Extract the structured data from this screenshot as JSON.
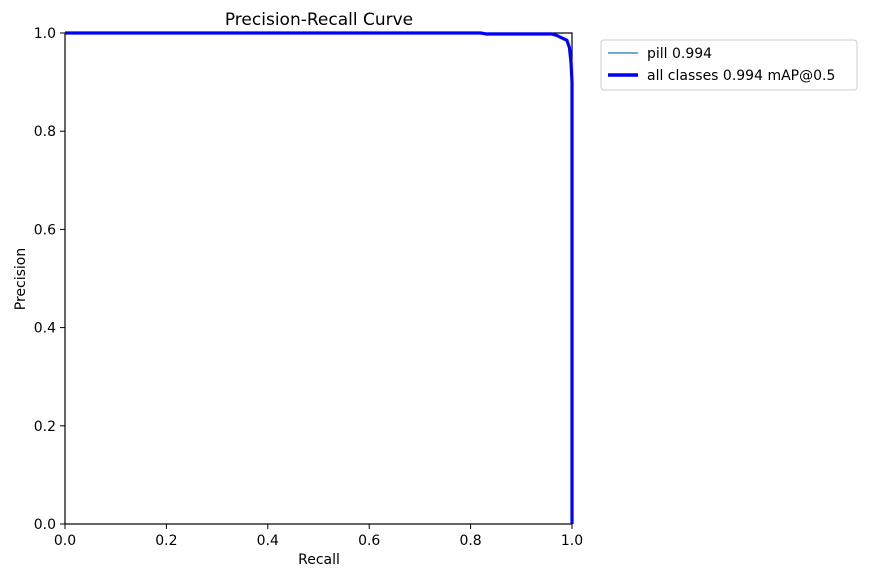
{
  "chart_data": {
    "type": "line",
    "title": "Precision-Recall Curve",
    "xlabel": "Recall",
    "ylabel": "Precision",
    "xlim": [
      0.0,
      1.0
    ],
    "ylim": [
      0.0,
      1.0
    ],
    "xticks": [
      "0.0",
      "0.2",
      "0.4",
      "0.6",
      "0.8",
      "1.0"
    ],
    "yticks": [
      "0.0",
      "0.2",
      "0.4",
      "0.6",
      "0.8",
      "1.0"
    ],
    "grid": false,
    "legend_position": "outside-top-right",
    "series": [
      {
        "name": "pill 0.994",
        "color": "#1f77b4",
        "linewidth": "thin",
        "x": [
          0.0,
          0.82,
          0.83,
          0.96,
          0.97,
          0.98,
          0.99,
          0.995,
          0.998,
          1.0,
          1.0
        ],
        "y": [
          1.0,
          1.0,
          0.998,
          0.998,
          0.995,
          0.99,
          0.985,
          0.97,
          0.94,
          0.9,
          0.0
        ]
      },
      {
        "name": "all classes 0.994 mAP@0.5",
        "color": "#0000ff",
        "linewidth": "thick",
        "x": [
          0.0,
          0.82,
          0.83,
          0.96,
          0.97,
          0.98,
          0.99,
          0.995,
          0.998,
          1.0,
          1.0
        ],
        "y": [
          1.0,
          1.0,
          0.998,
          0.998,
          0.995,
          0.99,
          0.985,
          0.97,
          0.94,
          0.9,
          0.0
        ]
      }
    ]
  }
}
